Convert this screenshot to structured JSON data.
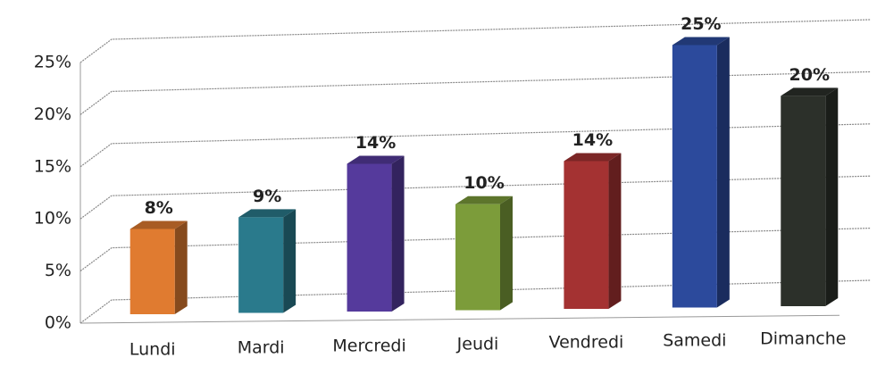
{
  "chart_data": {
    "type": "bar",
    "categories": [
      "Lundi",
      "Mardi",
      "Mercredi",
      "Jeudi",
      "Vendredi",
      "Samedi",
      "Dimanche"
    ],
    "values": [
      8,
      9,
      14,
      10,
      14,
      25,
      20
    ],
    "value_labels": [
      "8%",
      "9%",
      "14%",
      "10%",
      "14%",
      "25%",
      "20%"
    ],
    "colors": [
      "#e07b30",
      "#2a7a8c",
      "#553a9c",
      "#7c9c3a",
      "#a43232",
      "#2c4a9c",
      "#2c302a"
    ],
    "ylim": [
      0,
      25
    ],
    "yticks": [
      {
        "value": 0,
        "label": "0%"
      },
      {
        "value": 5,
        "label": "5%"
      },
      {
        "value": 10,
        "label": "10%"
      },
      {
        "value": 15,
        "label": "15%"
      },
      {
        "value": 20,
        "label": "20%"
      },
      {
        "value": 25,
        "label": "25%"
      }
    ],
    "grid": true
  }
}
